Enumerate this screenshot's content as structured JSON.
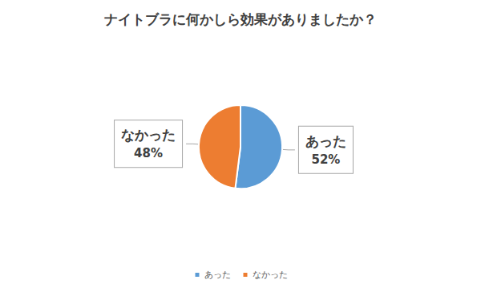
{
  "chart_data": {
    "type": "pie",
    "title": "ナイトブラに何かしら効果がありましたか？",
    "categories": [
      "あった",
      "なかった"
    ],
    "values": [
      52,
      48
    ],
    "value_labels": [
      "52%",
      "48%"
    ],
    "colors": [
      "#5b9bd5",
      "#ed7d31"
    ],
    "data_labels": true,
    "legend": "bottom"
  }
}
